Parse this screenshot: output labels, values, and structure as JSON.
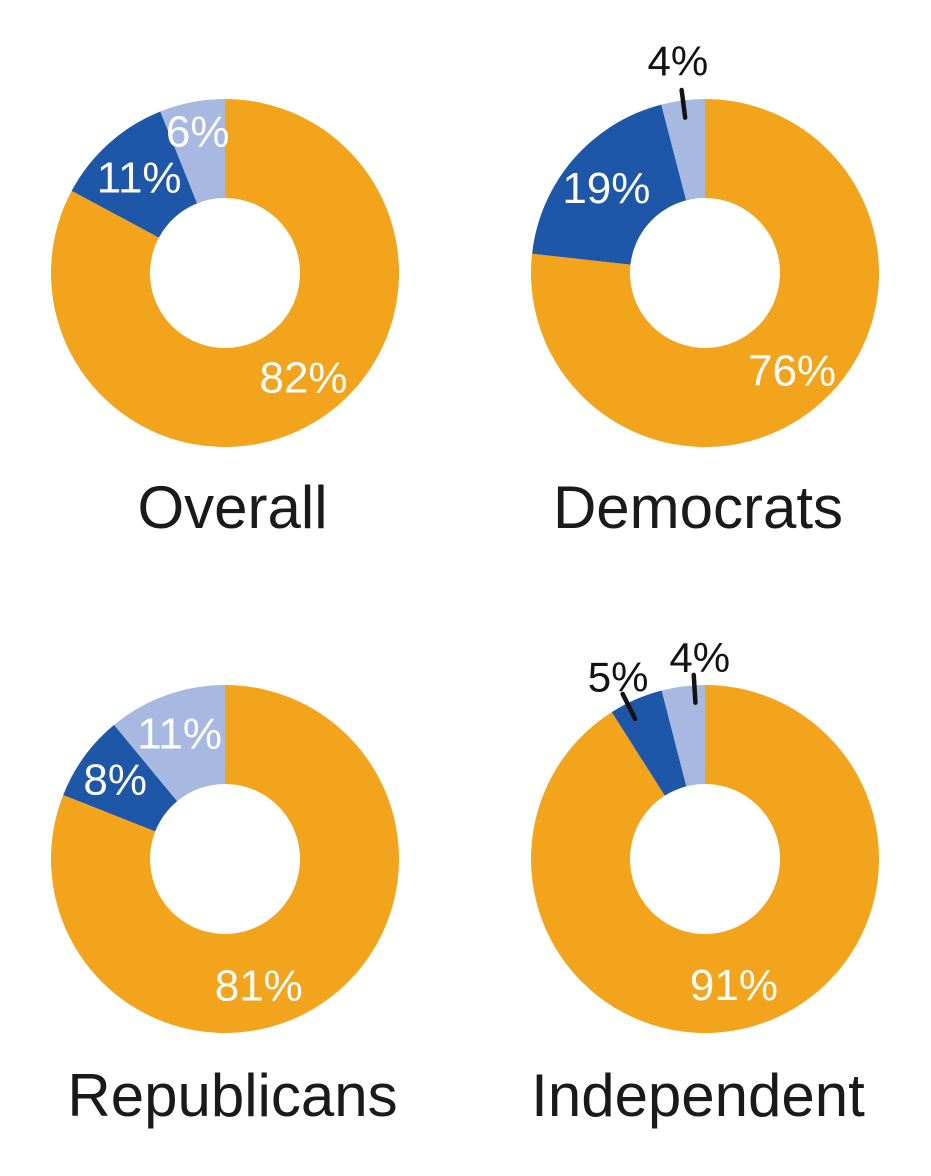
{
  "background_color": "#ffffff",
  "palette": {
    "orange": "#F2A41D",
    "dark_blue": "#1F57A8",
    "light_blue": "#A7B9E0",
    "inside_label": "#FDFDFE",
    "outside_label": "#131313",
    "leader_line": "#131313",
    "title_text": "#1A1A1A"
  },
  "chart_data": [
    {
      "type": "pie",
      "variant": "donut",
      "title": "Overall",
      "start_angle_deg": 0,
      "direction": "clockwise",
      "slices": [
        {
          "label": "82%",
          "value": 82,
          "color": "orange",
          "label_placement": "inside",
          "label_angle_deg": 143,
          "label_r": 0.75
        },
        {
          "label": "11%",
          "value": 11,
          "color": "dark_blue",
          "label_placement": "inside",
          "label_r": 0.74
        },
        {
          "label": "6%",
          "value": 6,
          "color": "light_blue",
          "label_placement": "inside",
          "label_r": 0.83
        }
      ]
    },
    {
      "type": "pie",
      "variant": "donut",
      "title": "Democrats",
      "start_angle_deg": 0,
      "direction": "clockwise",
      "slices": [
        {
          "label": "76%",
          "value": 76,
          "color": "orange",
          "label_placement": "inside",
          "label_r": 0.75
        },
        {
          "label": "19%",
          "value": 19,
          "color": "dark_blue",
          "label_placement": "inside",
          "label_r": 0.75
        },
        {
          "label": "4%",
          "value": 4,
          "color": "light_blue",
          "label_placement": "outside",
          "label_r": 1.23
        }
      ]
    },
    {
      "type": "pie",
      "variant": "donut",
      "title": "Republicans",
      "start_angle_deg": 0,
      "direction": "clockwise",
      "slices": [
        {
          "label": "81%",
          "value": 81,
          "color": "orange",
          "label_placement": "inside",
          "label_angle_deg": 165,
          "label_r": 0.75
        },
        {
          "label": "8%",
          "value": 8,
          "color": "dark_blue",
          "label_placement": "inside",
          "label_r": 0.78
        },
        {
          "label": "11%",
          "value": 11,
          "color": "light_blue",
          "label_placement": "inside",
          "label_r": 0.77
        }
      ]
    },
    {
      "type": "pie",
      "variant": "donut",
      "title": "Independent",
      "start_angle_deg": 0,
      "direction": "clockwise",
      "slices": [
        {
          "label": "91%",
          "value": 91,
          "color": "orange",
          "label_placement": "inside",
          "label_angle_deg": 167,
          "label_r": 0.74
        },
        {
          "label": "5%",
          "value": 5,
          "color": "dark_blue",
          "label_placement": "outside",
          "label_angle_deg": 334.5,
          "leader_angle_deg": 333.5,
          "label_r": 1.16
        },
        {
          "label": "4%",
          "value": 4,
          "color": "light_blue",
          "label_placement": "outside",
          "label_angle_deg": 358.5,
          "leader_angle_deg": 356.5,
          "label_r": 1.16
        }
      ]
    }
  ]
}
